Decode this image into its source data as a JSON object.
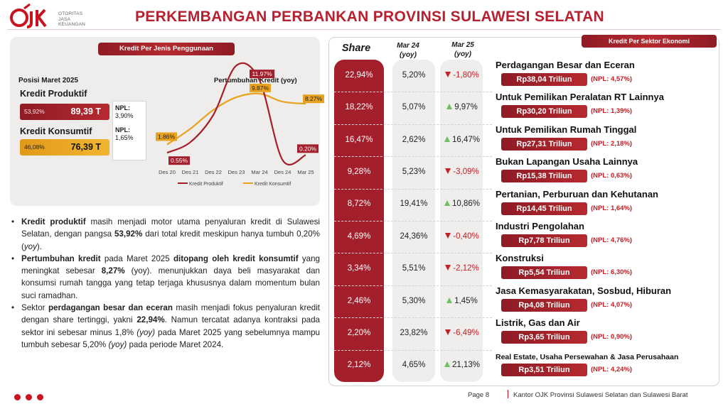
{
  "header": {
    "logo_mark": "OJK",
    "logo_lines": [
      "OTORITAS",
      "JASA",
      "KEUANGAN"
    ],
    "title": "PERKEMBANGAN PERBANKAN PROVINSI SULAWESI SELATAN"
  },
  "left": {
    "section_label": "Kredit Per Jenis Penggunaan",
    "posisi": "Posisi Maret 2025",
    "produktif": {
      "label": "Kredit Produktif",
      "share": "53,92%",
      "value": "89,39 T"
    },
    "konsumtif": {
      "label": "Kredit Konsumtif",
      "share": "46,08%",
      "value": "76,39 T"
    },
    "npl_box": {
      "header1": "NPL:",
      "value1": "3,90%",
      "header2": "NPL:",
      "value2": "1,65%"
    }
  },
  "chart_data": {
    "type": "line",
    "title": "Pertumbuhan Kredit (yoy)",
    "categories": [
      "Des 20",
      "Des 21",
      "Des 22",
      "Des 23",
      "Mar 24",
      "Des 24",
      "Mar 25"
    ],
    "series": [
      {
        "name": "Kredit Produktif",
        "color": "#a31f2b",
        "values": [
          0.55,
          2.2,
          6.5,
          14.3,
          11.97,
          -0.6,
          0.2
        ]
      },
      {
        "name": "Kredit Konsumtif",
        "color": "#e8a21d",
        "values": [
          1.86,
          4.3,
          7.3,
          9.3,
          9.87,
          8.6,
          8.27
        ]
      }
    ],
    "data_labels": {
      "Kredit Produktif": {
        "Des 20": "0.55%",
        "Mar 24": "11.97%",
        "Mar 25": "0.20%"
      },
      "Kredit Konsumtif": {
        "Des 20": "1.86%",
        "Mar 24": "9.87%",
        "Mar 25": "8.27%"
      }
    },
    "ylim": [
      -2,
      15
    ],
    "grid": false,
    "legend": "bottom"
  },
  "bullets": [
    [
      {
        "t": "Kredit produktif",
        "b": true
      },
      {
        "t": " masih menjadi motor utama penyaluran kredit di Sulawesi Selatan, dengan pangsa "
      },
      {
        "t": "53,92%",
        "b": true
      },
      {
        "t": " dari total kredit meskipun hanya tumbuh 0,20% ("
      },
      {
        "t": "yoy",
        "i": true
      },
      {
        "t": ")."
      }
    ],
    [
      {
        "t": "Pertumbuhan kredit",
        "b": true
      },
      {
        "t": " pada Maret 2025 "
      },
      {
        "t": "ditopang oleh kredit konsumtif",
        "b": true
      },
      {
        "t": " yang meningkat sebesar "
      },
      {
        "t": "8,27%",
        "b": true
      },
      {
        "t": " (yoy). menunjukkan daya beli masyarakat dan konsumsi rumah tangga yang tetap terjaga khususnya dalam momentum bulan suci ramadhan."
      }
    ],
    [
      {
        "t": "Sektor "
      },
      {
        "t": "perdagangan besar dan eceran",
        "b": true
      },
      {
        "t": " masih menjadi fokus penyaluran kredit dengan share tertinggi, yakni "
      },
      {
        "t": "22,94%",
        "b": true
      },
      {
        "t": ". Namun tercatat adanya kontraksi pada sektor ini sebesar minus 1,8% "
      },
      {
        "t": "(yoy)",
        "i": true
      },
      {
        "t": " pada Maret 2025 yang sebelumnya mampu tumbuh sebesar 5,20% "
      },
      {
        "t": "(yoy)",
        "i": true
      },
      {
        "t": " pada periode Maret 2024."
      }
    ]
  ],
  "right": {
    "section_label": "Kredit Per Sektor Ekonomi",
    "headers": {
      "share": "Share",
      "mar24_a": "Mar 24",
      "mar24_b": "(yoy)",
      "mar25_a": "Mar 25",
      "mar25_b": "(yoy)"
    },
    "rows": [
      {
        "share": "22,94%",
        "mar24": "5,20%",
        "mar25": "-1,80%",
        "dir": "down",
        "name": "Perdagangan Besar dan Eceran",
        "amount": "Rp38,04 Triliun",
        "npl": "(NPL: 4,57%)"
      },
      {
        "share": "18,22%",
        "mar24": "5,07%",
        "mar25": "9,97%",
        "dir": "up",
        "name": "Untuk Pemilikan Peralatan RT Lainnya",
        "amount": "Rp30,20 Triliun",
        "npl": "(NPL: 1,39%)"
      },
      {
        "share": "16,47%",
        "mar24": "2,62%",
        "mar25": "16,47%",
        "dir": "up",
        "name": "Untuk Pemilikan Rumah Tinggal",
        "amount": "Rp27,31 Triliun",
        "npl": "(NPL: 2,18%)"
      },
      {
        "share": "9,28%",
        "mar24": "5,23%",
        "mar25": "-3,09%",
        "dir": "down",
        "name": "Bukan Lapangan Usaha Lainnya",
        "amount": "Rp15,38 Triliun",
        "npl": "(NPL: 0,63%)"
      },
      {
        "share": "8,72%",
        "mar24": "19,41%",
        "mar25": "10,86%",
        "dir": "up",
        "name": "Pertanian, Perburuan dan Kehutanan",
        "amount": "Rp14,45 Triliun",
        "npl": "(NPL: 1,64%)"
      },
      {
        "share": "4,69%",
        "mar24": "24,36%",
        "mar25": "-0,40%",
        "dir": "down",
        "name": "Industri Pengolahan",
        "amount": "Rp7,78 Triliun",
        "npl": "(NPL: 4,76%)"
      },
      {
        "share": "3,34%",
        "mar24": "5,51%",
        "mar25": "-2,12%",
        "dir": "down",
        "name": "Konstruksi",
        "amount": "Rp5,54 Triliun",
        "npl": "(NPL: 6,30%)"
      },
      {
        "share": "2,46%",
        "mar24": "5,30%",
        "mar25": "1,45%",
        "dir": "up",
        "name": "Jasa Kemasyarakatan, Sosbud, Hiburan",
        "amount": "Rp4,08 Triliun",
        "npl": "(NPL: 4,07%)"
      },
      {
        "share": "2,20%",
        "mar24": "23,82%",
        "mar25": "-6,49%",
        "dir": "down",
        "name": "Listrik, Gas dan Air",
        "amount": "Rp3,65 Triliun",
        "npl": "(NPL: 0,90%)"
      },
      {
        "share": "2,12%",
        "mar24": "4,65%",
        "mar25": "21,13%",
        "dir": "up",
        "name": "Real Estate, Usaha Persewahan & Jasa Perusahaan",
        "amount": "Rp3,51 Triliun",
        "npl": "(NPL: 4,24%)"
      }
    ]
  },
  "footer": {
    "page": "Page  8",
    "office": "Kantor  OJK Provinsi Sulawesi Selatan dan Sulawesi Barat"
  },
  "colors": {
    "brand_red": "#b7202e",
    "dark_red": "#a31f2b",
    "gold": "#e8a21d",
    "up_green": "#6cbf63",
    "down_red": "#c01f26"
  }
}
